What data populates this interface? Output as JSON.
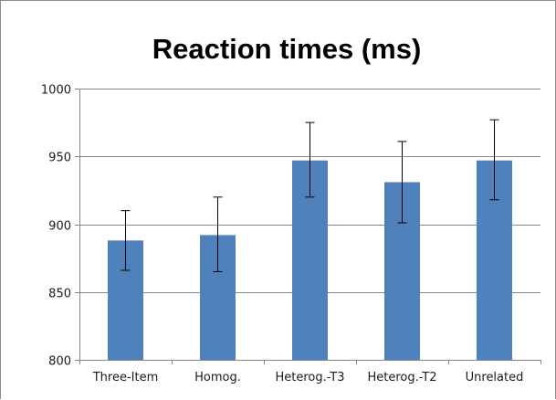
{
  "chart_data": {
    "type": "bar",
    "title": "Reaction times (ms)",
    "xlabel": "",
    "ylabel": "",
    "categories": [
      "Three-Item",
      "Homog.",
      "Heterog.-T3",
      "Heterog.-T2",
      "Unrelated"
    ],
    "values": [
      888,
      892,
      947,
      931,
      947
    ],
    "error_low": [
      866,
      865,
      920,
      901,
      918
    ],
    "error_high": [
      910,
      920,
      975,
      961,
      977
    ],
    "ylim": [
      800,
      1000
    ],
    "yticks": [
      800,
      850,
      900,
      950,
      1000
    ],
    "grid": true,
    "legend": "none",
    "bar_color": "#4f81bd"
  }
}
